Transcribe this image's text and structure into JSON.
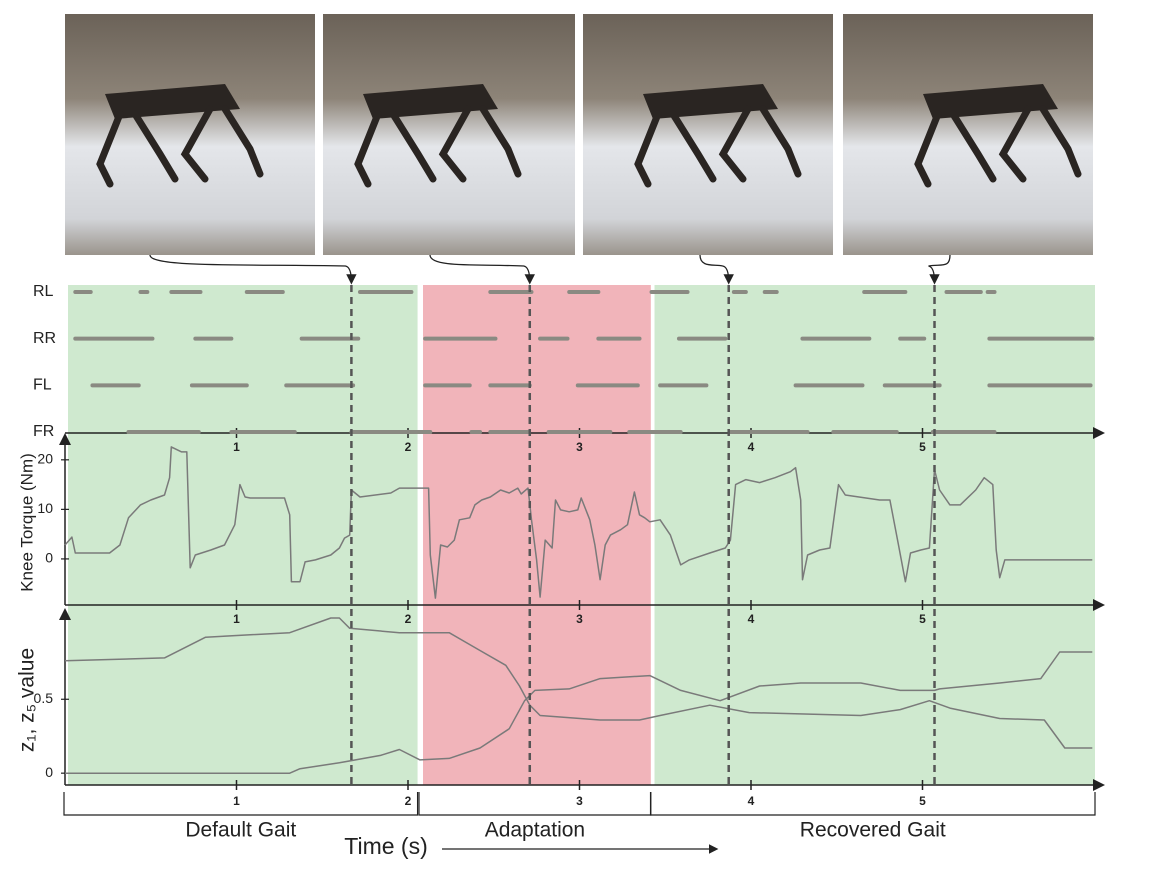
{
  "chart_data": [
    {
      "type": "gait",
      "categories": [
        "RL",
        "RR",
        "FL",
        "FR"
      ],
      "color": "#8a8a82",
      "xlim": [
        0,
        6
      ],
      "xticks": [
        1,
        2,
        3,
        4,
        5
      ],
      "intervals": [
        [
          [
            0.06,
            0.15
          ],
          [
            0.44,
            0.48
          ],
          [
            0.62,
            0.79
          ],
          [
            1.06,
            1.27
          ],
          [
            1.72,
            2.02
          ],
          [
            2.48,
            2.72
          ],
          [
            2.94,
            3.11
          ],
          [
            3.42,
            3.63
          ],
          [
            3.9,
            3.97
          ],
          [
            4.08,
            4.15
          ],
          [
            4.66,
            4.9
          ],
          [
            5.14,
            5.34
          ],
          [
            5.38,
            5.42
          ]
        ],
        [
          [
            0.06,
            0.51
          ],
          [
            0.76,
            0.97
          ],
          [
            1.38,
            1.71
          ],
          [
            2.1,
            2.51
          ],
          [
            2.77,
            2.93
          ],
          [
            3.11,
            3.35
          ],
          [
            3.58,
            3.85
          ],
          [
            4.3,
            4.69
          ],
          [
            4.87,
            5.01
          ],
          [
            5.39,
            5.99
          ]
        ],
        [
          [
            0.16,
            0.43
          ],
          [
            0.74,
            1.06
          ],
          [
            1.29,
            1.68
          ],
          [
            2.1,
            2.36
          ],
          [
            2.48,
            2.71
          ],
          [
            2.99,
            3.34
          ],
          [
            3.47,
            3.74
          ],
          [
            4.26,
            4.65
          ],
          [
            4.78,
            5.1
          ],
          [
            5.39,
            5.98
          ]
        ],
        [
          [
            0.37,
            0.78
          ],
          [
            0.97,
            1.34
          ],
          [
            1.67,
            2.13
          ],
          [
            2.37,
            2.42
          ],
          [
            2.48,
            2.7
          ],
          [
            2.82,
            3.18
          ],
          [
            3.29,
            3.59
          ],
          [
            3.88,
            4.33
          ],
          [
            4.48,
            4.85
          ],
          [
            5.06,
            5.42
          ]
        ]
      ]
    },
    {
      "type": "line",
      "ylabel": "Knee Torque (Nm)",
      "xlim": [
        0,
        6
      ],
      "xticks": [
        1,
        2,
        3,
        4,
        5
      ],
      "ylim": [
        -9.3,
        24
      ],
      "yticks": [
        0,
        10,
        20
      ],
      "series": [
        {
          "color": "#7a7a7a",
          "x": [
            0,
            0.04,
            0.06,
            0.09,
            0.26,
            0.32,
            0.37,
            0.44,
            0.5,
            0.58,
            0.61,
            0.62,
            0.68,
            0.71,
            0.73,
            0.76,
            0.85,
            0.93,
            0.99,
            1.02,
            1.05,
            1.08,
            1.28,
            1.31,
            1.32,
            1.37,
            1.4,
            1.46,
            1.55,
            1.6,
            1.63,
            1.66,
            1.67,
            1.72,
            1.9,
            1.95,
            2.12,
            2.13,
            2.16,
            2.19,
            2.23,
            2.27,
            2.3,
            2.36,
            2.39,
            2.43,
            2.48,
            2.54,
            2.59,
            2.64,
            2.66,
            2.7,
            2.72,
            2.75,
            2.77,
            2.8,
            2.84,
            2.86,
            2.89,
            2.94,
            2.99,
            3.01,
            3.06,
            3.09,
            3.12,
            3.15,
            3.18,
            3.24,
            3.28,
            3.32,
            3.35,
            3.38,
            3.41,
            3.47,
            3.53,
            3.59,
            3.64,
            3.76,
            3.85,
            3.88,
            3.91,
            3.97,
            4.05,
            4.14,
            4.23,
            4.26,
            4.29,
            4.3,
            4.33,
            4.4,
            4.46,
            4.51,
            4.55,
            4.75,
            4.81,
            4.86,
            4.9,
            4.93,
            4.99,
            5.04,
            5.07,
            5.1,
            5.16,
            5.22,
            5.31,
            5.36,
            5.41,
            5.43,
            5.45,
            5.48,
            5.57,
            5.99
          ],
          "values": [
            2.8,
            4.4,
            1.2,
            1.2,
            1.2,
            2.8,
            8.3,
            10.9,
            11.9,
            12.9,
            16.4,
            22.6,
            21.6,
            21.6,
            -1.8,
            0.8,
            1.8,
            2.8,
            6.9,
            15.0,
            12.5,
            12.3,
            12.3,
            8.9,
            -4.6,
            -4.6,
            -0.6,
            -0.2,
            0.8,
            2.2,
            4.2,
            4.8,
            13.9,
            12.5,
            13.3,
            14.3,
            14.3,
            0.8,
            -7.9,
            2.8,
            2.4,
            3.8,
            7.9,
            8.3,
            10.9,
            11.9,
            12.5,
            13.9,
            13.3,
            14.3,
            13.1,
            14.3,
            7.9,
            -0.2,
            -7.7,
            3.8,
            2.2,
            11.9,
            9.9,
            9.5,
            9.9,
            12.3,
            7.9,
            2.8,
            -4.2,
            2.8,
            4.8,
            5.9,
            6.9,
            13.5,
            8.9,
            8.3,
            7.5,
            7.9,
            4.8,
            -1.2,
            -0.2,
            1.2,
            2.2,
            3.8,
            15.0,
            16.0,
            15.4,
            16.4,
            17.6,
            18.4,
            11.9,
            -4.2,
            0.8,
            1.8,
            2.2,
            15.0,
            12.9,
            11.9,
            11.9,
            2.8,
            -4.6,
            1.2,
            1.8,
            2.2,
            18.0,
            13.9,
            10.9,
            10.9,
            13.9,
            16.4,
            15.0,
            1.8,
            -3.8,
            -0.2,
            -0.2,
            -0.2
          ]
        }
      ]
    },
    {
      "type": "line",
      "ylabel": "z₁, z₅ value",
      "xlim": [
        0,
        6
      ],
      "xticks": [
        1,
        2,
        3,
        4,
        5
      ],
      "ylim": [
        -0.08,
        1.07
      ],
      "yticks": [
        0,
        0.5
      ],
      "series": [
        {
          "color": "#7a7a7a",
          "x": [
            0,
            0.58,
            0.82,
            1.31,
            1.55,
            1.6,
            1.66,
            1.95,
            2.24,
            2.42,
            2.57,
            2.65,
            2.71,
            2.77,
            3.12,
            3.35,
            3.47,
            3.76,
            3.99,
            4.64,
            4.87,
            5.04,
            5.16,
            5.45,
            5.71,
            5.83,
            5.99
          ],
          "values": [
            0.76,
            0.78,
            0.92,
            0.95,
            1.05,
            1.05,
            0.98,
            0.95,
            0.95,
            0.83,
            0.73,
            0.59,
            0.46,
            0.39,
            0.36,
            0.36,
            0.39,
            0.46,
            0.41,
            0.39,
            0.43,
            0.49,
            0.44,
            0.37,
            0.36,
            0.17,
            0.17
          ]
        },
        {
          "color": "#7a7a7a",
          "x": [
            0,
            1.31,
            1.37,
            1.6,
            1.84,
            1.95,
            2.07,
            2.24,
            2.42,
            2.59,
            2.68,
            2.74,
            2.94,
            3.12,
            3.41,
            3.59,
            3.82,
            4.05,
            4.29,
            4.64,
            4.87,
            5.07,
            5.1,
            5.45,
            5.69,
            5.8,
            5.99
          ],
          "values": [
            0,
            0,
            0.03,
            0.07,
            0.12,
            0.16,
            0.09,
            0.1,
            0.17,
            0.3,
            0.49,
            0.56,
            0.57,
            0.64,
            0.66,
            0.56,
            0.49,
            0.59,
            0.61,
            0.61,
            0.56,
            0.56,
            0.57,
            0.61,
            0.64,
            0.82,
            0.82
          ]
        }
      ]
    }
  ],
  "figure": {
    "xlabel": "Time (s)",
    "events": [
      1.67,
      2.71,
      3.87,
      5.07
    ],
    "phases": [
      {
        "label": "Default Gait",
        "start": 0,
        "end": 2.05,
        "color": "#cfe9cf"
      },
      {
        "label": "Adaptation",
        "start": 2.07,
        "end": 3.41,
        "color": "#f1b4ba"
      },
      {
        "label": "Recovered Gait",
        "start": 3.42,
        "end": 6,
        "color": "#cfe9cf"
      }
    ]
  }
}
